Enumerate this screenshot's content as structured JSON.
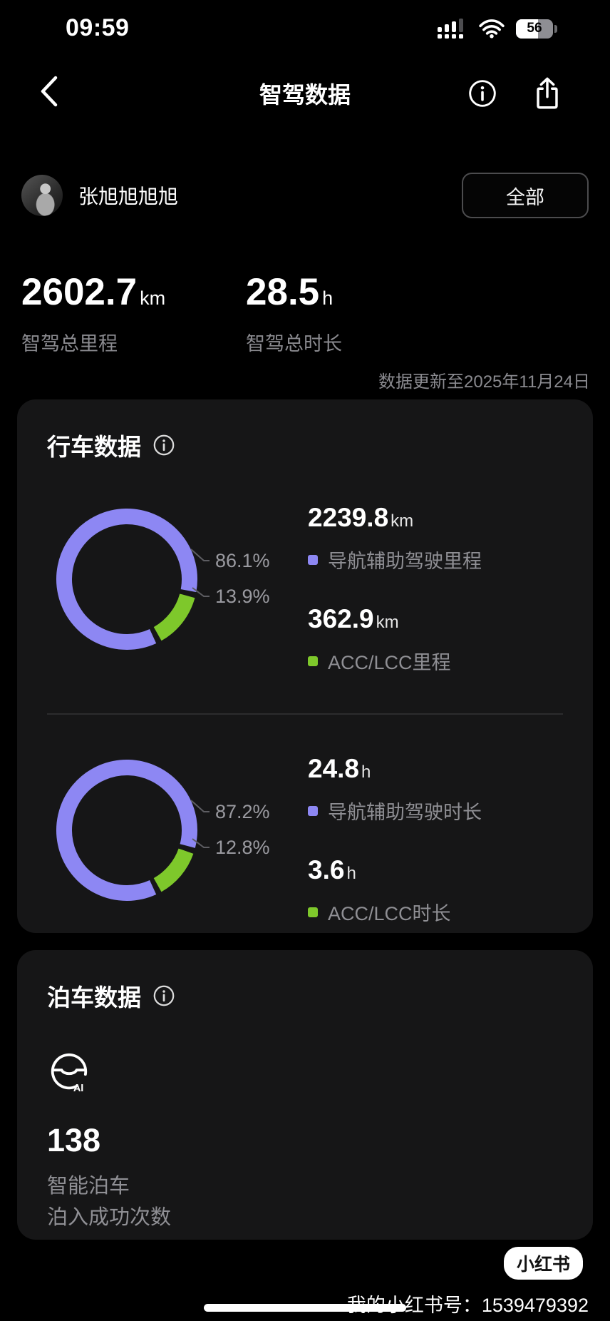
{
  "colors": {
    "background": "#000000",
    "card_background": "#161617",
    "accent_purple": "#8d87f3",
    "accent_green": "#7ec82b",
    "text_secondary": "#8f8f94",
    "badge_background": "#ffffff"
  },
  "status_bar": {
    "time": "09:59",
    "battery_percent": "56",
    "icons": {
      "cellular": "cellular-signal-icon",
      "wifi": "wifi-icon",
      "battery": "battery-icon"
    }
  },
  "nav": {
    "title": "智驾数据",
    "icons": {
      "back": "chevron-left-icon",
      "info": "info-circle-icon",
      "share": "share-export-icon"
    }
  },
  "user": {
    "name": "张旭旭旭旭",
    "filter_button_label": "全部"
  },
  "summary": {
    "metrics": [
      {
        "value": "2602.7",
        "unit": "km",
        "label": "智驾总里程"
      },
      {
        "value": "28.5",
        "unit": "h",
        "label": "智驾总时长"
      }
    ],
    "updated_text": "数据更新至2025年11月24日"
  },
  "driving_card": {
    "title": "行车数据",
    "info_icon": "info-circle-icon",
    "charts": [
      {
        "type": "donut",
        "segments": [
          {
            "name": "导航辅助驾驶里程",
            "pct": 86.1,
            "label": "86.1%",
            "color": "#8d87f3",
            "start_deg": 153
          },
          {
            "name": "ACC/LCC里程",
            "pct": 13.9,
            "label": "13.9%",
            "color": "#7ec82b",
            "start_deg": 103
          }
        ],
        "metrics": [
          {
            "value": "2239.8",
            "unit": "km",
            "label": "导航辅助驾驶里程",
            "color": "#8d87f3"
          },
          {
            "value": "362.9",
            "unit": "km",
            "label": "ACC/LCC里程",
            "color": "#7ec82b"
          }
        ]
      },
      {
        "type": "donut",
        "segments": [
          {
            "name": "导航辅助驾驶时长",
            "pct": 87.2,
            "label": "87.2%",
            "color": "#8d87f3",
            "start_deg": 153
          },
          {
            "name": "ACC/LCC时长",
            "pct": 12.8,
            "label": "12.8%",
            "color": "#7ec82b",
            "start_deg": 107
          }
        ],
        "metrics": [
          {
            "value": "24.8",
            "unit": "h",
            "label": "导航辅助驾驶时长",
            "color": "#8d87f3"
          },
          {
            "value": "3.6",
            "unit": "h",
            "label": "ACC/LCC时长",
            "color": "#7ec82b"
          }
        ]
      }
    ]
  },
  "parking_card": {
    "title": "泊车数据",
    "info_icon": "info-circle-icon",
    "icon": "ai-parking-steering-wheel-icon",
    "value": "138",
    "label_line1": "智能泊车",
    "label_line2": "泊入成功次数"
  },
  "footer": {
    "badge": "小红书",
    "account": "我的小红书号：1539479392"
  }
}
